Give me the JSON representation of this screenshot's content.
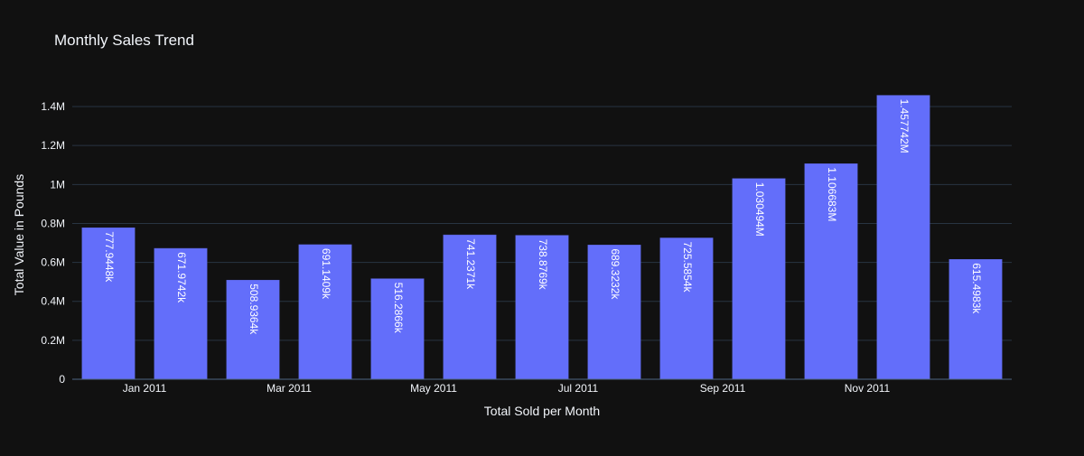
{
  "chart_data": {
    "type": "bar",
    "title": "Monthly Sales Trend",
    "xlabel": "Total Sold per Month",
    "ylabel": "Total Value in Pounds",
    "ylim": [
      0,
      1530000
    ],
    "grid": true,
    "legend": "none",
    "months": [
      "2010-12",
      "2011-01",
      "2011-02",
      "2011-03",
      "2011-04",
      "2011-05",
      "2011-06",
      "2011-07",
      "2011-08",
      "2011-09",
      "2011-10",
      "2011-11",
      "2011-12"
    ],
    "values": [
      777944.8,
      671974.2,
      508936.4,
      691140.9,
      516286.6,
      741237.1,
      738876.9,
      689323.2,
      725585.4,
      1030494,
      1106683,
      1457742,
      615498.3
    ],
    "data_labels": [
      "777.9448k",
      "671.9742k",
      "508.9364k",
      "691.1409k",
      "516.2866k",
      "741.2371k",
      "738.8769k",
      "689.3232k",
      "725.5854k",
      "1.030494M",
      "1.106683M",
      "1.457742M",
      "615.4983k"
    ],
    "x_ticks": [
      {
        "month": "2011-01",
        "label": "Jan 2011"
      },
      {
        "month": "2011-03",
        "label": "Mar 2011"
      },
      {
        "month": "2011-05",
        "label": "May 2011"
      },
      {
        "month": "2011-07",
        "label": "Jul 2011"
      },
      {
        "month": "2011-09",
        "label": "Sep 2011"
      },
      {
        "month": "2011-11",
        "label": "Nov 2011"
      }
    ],
    "y_ticks": [
      {
        "value": 0,
        "label": "0"
      },
      {
        "value": 200000,
        "label": "0.2M"
      },
      {
        "value": 400000,
        "label": "0.4M"
      },
      {
        "value": 600000,
        "label": "0.6M"
      },
      {
        "value": 800000,
        "label": "0.8M"
      },
      {
        "value": 1000000,
        "label": "1M"
      },
      {
        "value": 1200000,
        "label": "1.2M"
      },
      {
        "value": 1400000,
        "label": "1.4M"
      }
    ],
    "colors": {
      "background": "#111111",
      "bar": "#636efa",
      "grid": "#283442",
      "axis_text": "#f2f5fa",
      "label_text": "#ffffff"
    }
  }
}
